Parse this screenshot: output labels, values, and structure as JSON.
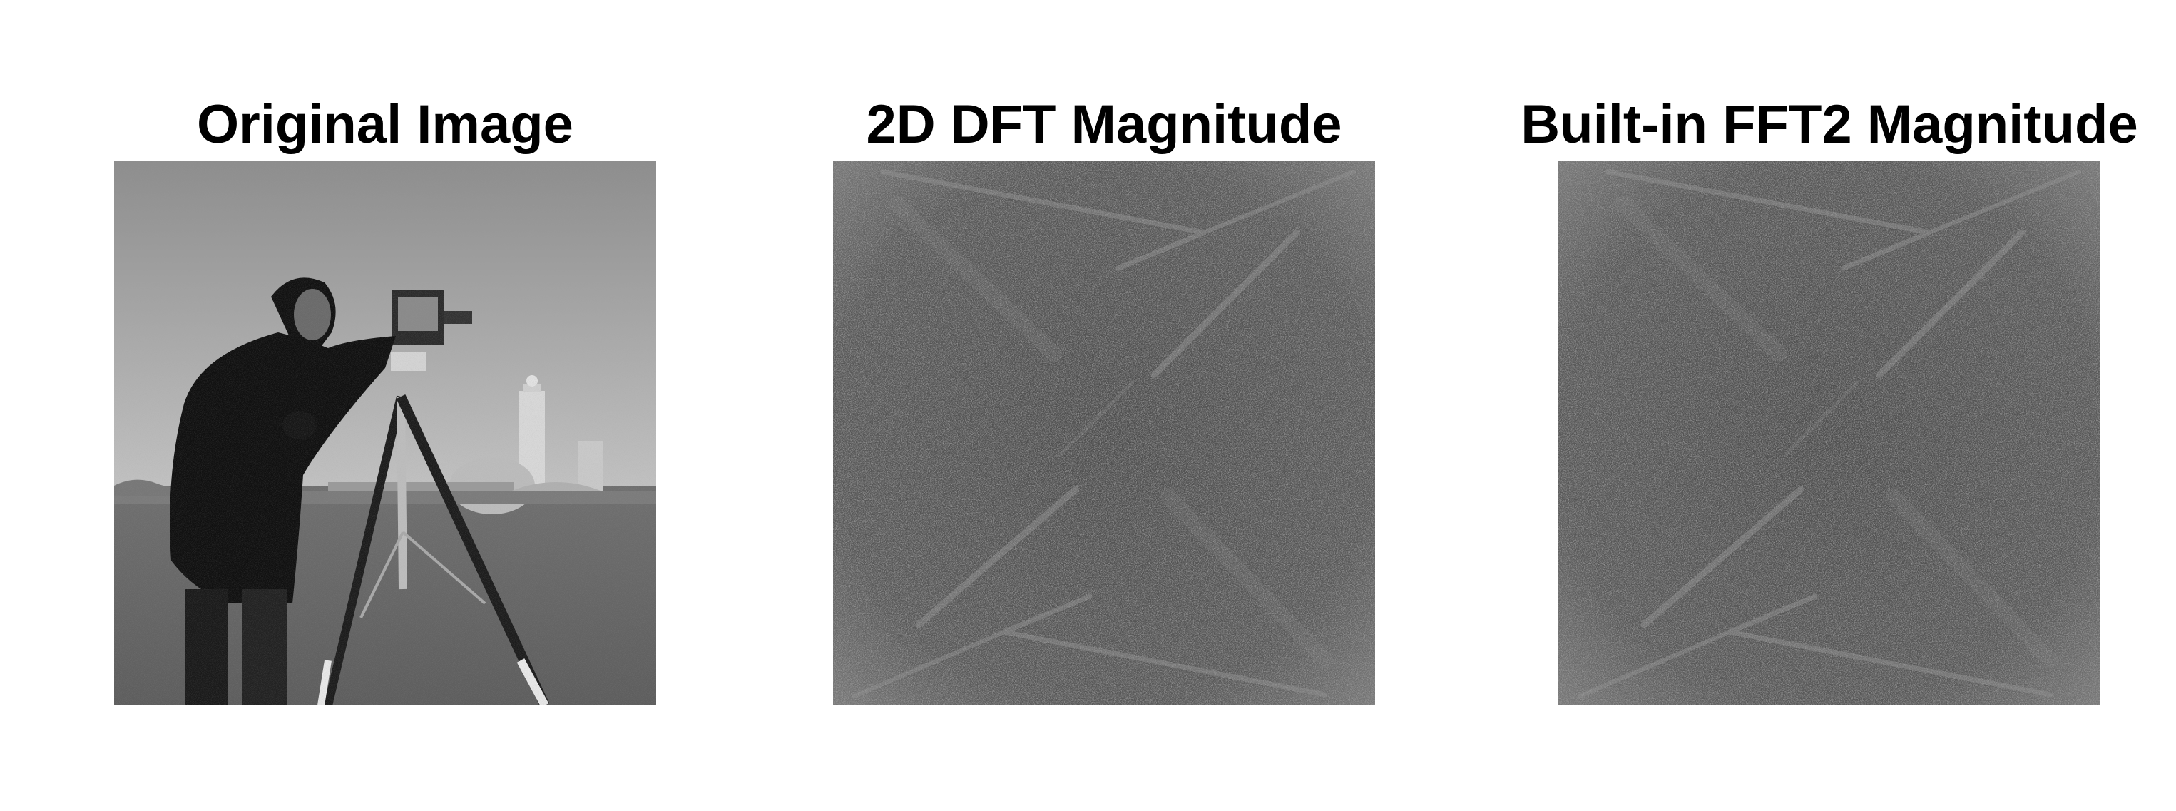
{
  "figure": {
    "panels": [
      {
        "title": "Original Image",
        "content": "cameraman photograph"
      },
      {
        "title": "2D DFT Magnitude",
        "content": "log magnitude spectrum"
      },
      {
        "title": "Built-in FFT2 Magnitude",
        "content": "log magnitude spectrum"
      }
    ]
  },
  "colors": {
    "background": "#ffffff",
    "title_text": "#000000",
    "spectrum_base": "#5a5a5a",
    "spectrum_streak": "#8a8a8a"
  }
}
